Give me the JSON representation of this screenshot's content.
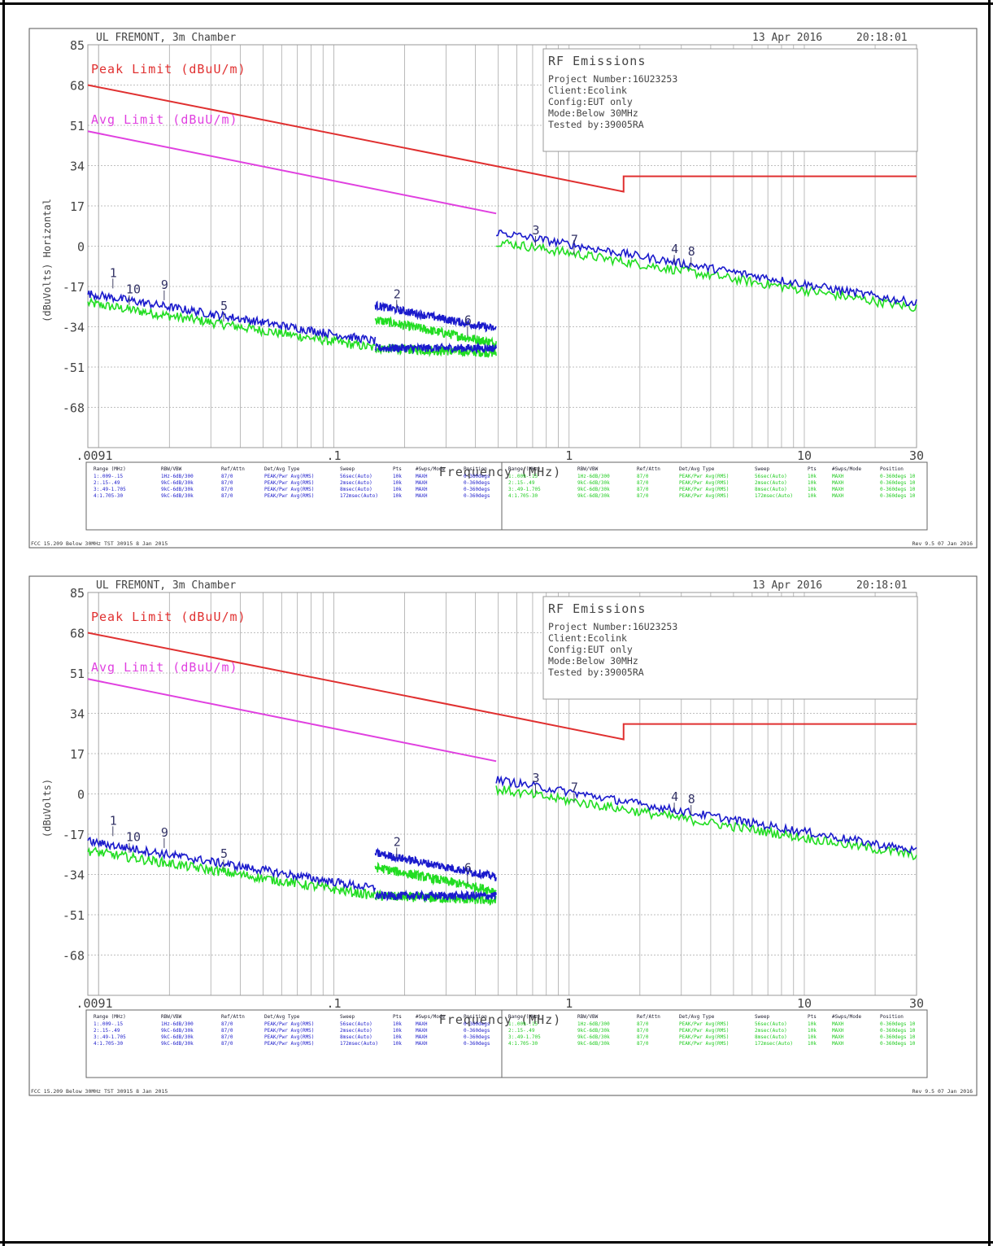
{
  "colors": {
    "peak_limit": "#e03030",
    "avg_limit": "#e040e0",
    "peak_trace": "#1a1acc",
    "avg_trace": "#22dd22",
    "grid": "#aaaaaa",
    "text": "#444444"
  },
  "chart_data": [
    {
      "type": "line",
      "header_left": "UL FREMONT, 3m Chamber",
      "header_date": "13 Apr 2016",
      "header_time": "20:18:01",
      "ylabel": "(dBuVolts) Horizontal",
      "xlabel": "Frequency (MHz)",
      "x_scale": "log",
      "xlim": [
        0.009,
        30
      ],
      "ylim": [
        -85,
        85
      ],
      "y_ticks": [
        "85",
        "68",
        "51",
        "34",
        "17",
        "0",
        "-17",
        "-34",
        "-51",
        "-68"
      ],
      "x_ticks": [
        {
          "value": 0.009,
          "label": ".0091"
        },
        {
          "value": 0.1,
          "label": ".1"
        },
        {
          "value": 1,
          "label": "1"
        },
        {
          "value": 10,
          "label": "10"
        },
        {
          "value": 30,
          "label": "30"
        }
      ],
      "info_box": {
        "title": "RF Emissions",
        "lines": [
          "Project Number:16U23253",
          "Client:Ecolink",
          "Config:EUT only",
          "Mode:Below 30MHz",
          "Tested by:39005RA"
        ]
      },
      "series": [
        {
          "name": "Peak Limit (dBuU/m)",
          "x": [
            0.009,
            0.49,
            1.705,
            1.705,
            30
          ],
          "y": [
            68,
            33.8,
            23,
            29.5,
            29.5
          ]
        },
        {
          "name": "Avg Limit (dBuU/m)",
          "x": [
            0.009,
            0.49
          ],
          "y": [
            48.5,
            13.8
          ]
        }
      ],
      "peak_segments": [
        {
          "x": [
            0.009,
            0.15
          ],
          "y": [
            -20,
            -40
          ]
        },
        {
          "x": [
            0.15,
            0.49
          ],
          "y": [
            -43,
            -43
          ]
        },
        {
          "x": [
            0.15,
            0.49
          ],
          "y": [
            -25,
            -35
          ]
        },
        {
          "x": [
            0.49,
            30
          ],
          "y": [
            6,
            -24
          ]
        }
      ],
      "avg_segments": [
        {
          "x": [
            0.009,
            0.15
          ],
          "y": [
            -24,
            -43
          ]
        },
        {
          "x": [
            0.15,
            0.49
          ],
          "y": [
            -43,
            -45
          ]
        },
        {
          "x": [
            0.15,
            0.49
          ],
          "y": [
            -31,
            -41
          ]
        },
        {
          "x": [
            0.49,
            30
          ],
          "y": [
            2,
            -26
          ]
        }
      ],
      "markers": [
        {
          "label": "1",
          "x": 0.0115,
          "y": -13
        },
        {
          "label": "10",
          "x": 0.0135,
          "y": -20
        },
        {
          "label": "9",
          "x": 0.019,
          "y": -18
        },
        {
          "label": "5",
          "x": 0.034,
          "y": -27
        },
        {
          "label": "2",
          "x": 0.185,
          "y": -22
        },
        {
          "label": "6",
          "x": 0.37,
          "y": -33
        },
        {
          "label": "3",
          "x": 0.72,
          "y": 5
        },
        {
          "label": "7",
          "x": 1.05,
          "y": 1
        },
        {
          "label": "4",
          "x": 2.8,
          "y": -3
        },
        {
          "label": "8",
          "x": 3.3,
          "y": -4
        }
      ],
      "settings_table": {
        "left_headers": [
          "Range (MHz)",
          "RBW/VBW",
          "Ref/Attn",
          "Det/Avg Type",
          "Sweep",
          "Pts",
          "#Swps/Mode",
          "Position"
        ],
        "left_rows": [
          [
            "1:.009-.15",
            "1Hz-6dB/300",
            "87/0",
            "PEAK/Pwr Avg(RMS)",
            "56sec(Auto)",
            "10k",
            "MAXH",
            "0-360degs"
          ],
          [
            "2:.15-.49",
            "9kC-6dB/30k",
            "87/0",
            "PEAK/Pwr Avg(RMS)",
            "2msec(Auto)",
            "10k",
            "MAXH",
            "0-360degs"
          ],
          [
            "3:.49-1.705",
            "9kC-6dB/30k",
            "87/0",
            "PEAK/Pwr Avg(RMS)",
            "8msec(Auto)",
            "10k",
            "MAXH",
            "0-360degs"
          ],
          [
            "4:1.705-30",
            "9kC-6dB/30k",
            "87/0",
            "PEAK/Pwr Avg(RMS)",
            "172msec(Auto)",
            "10k",
            "MAXH",
            "0-360degs"
          ]
        ],
        "right_headers": [
          "Range (MHz)",
          "RBW/VBW",
          "Ref/Attn",
          "Det/Avg Type",
          "Sweep",
          "Pts",
          "#Swps/Mode",
          "Position"
        ],
        "right_rows": [
          [
            "1:.009-.15",
            "1Hz-6dB/300",
            "87/0",
            "PEAK/Pwr Avg(RMS)",
            "56sec(Auto)",
            "10k",
            "MAXH",
            "0-360degs 10"
          ],
          [
            "2:.15-.49",
            "9kC-6dB/30k",
            "87/0",
            "PEAK/Pwr Avg(RMS)",
            "2msec(Auto)",
            "10k",
            "MAXH",
            "0-360degs 10"
          ],
          [
            "3:.49-1.705",
            "9kC-6dB/30k",
            "87/0",
            "PEAK/Pwr Avg(RMS)",
            "8msec(Auto)",
            "10k",
            "MAXH",
            "0-360degs 10"
          ],
          [
            "4:1.705-30",
            "9kC-6dB/30k",
            "87/0",
            "PEAK/Pwr Avg(RMS)",
            "172msec(Auto)",
            "10k",
            "MAXH",
            "0-360degs 10"
          ]
        ]
      },
      "footer_left": "FCC 15.209 Below 30MHz TST 30915  8 Jan 2015",
      "footer_right": "Rev 9.5 07 Jan 2016"
    },
    {
      "type": "line",
      "header_left": "UL FREMONT, 3m Chamber",
      "header_date": "13 Apr 2016",
      "header_time": "20:18:01",
      "ylabel": "(dBuVolts)",
      "xlabel": "Frequency (MHz)",
      "x_scale": "log",
      "xlim": [
        0.009,
        30
      ],
      "ylim": [
        -85,
        85
      ],
      "y_ticks": [
        "85",
        "68",
        "51",
        "34",
        "17",
        "0",
        "-17",
        "-34",
        "-51",
        "-68"
      ],
      "x_ticks": [
        {
          "value": 0.009,
          "label": ".0091"
        },
        {
          "value": 0.1,
          "label": ".1"
        },
        {
          "value": 1,
          "label": "1"
        },
        {
          "value": 10,
          "label": "10"
        },
        {
          "value": 30,
          "label": "30"
        }
      ],
      "info_box": {
        "title": "RF Emissions",
        "lines": [
          "Project Number:16U23253",
          "Client:Ecolink",
          "Config:EUT only",
          "Mode:Below 30MHz",
          "Tested by:39005RA"
        ]
      },
      "series": [
        {
          "name": "Peak Limit (dBuU/m)",
          "x": [
            0.009,
            0.49,
            1.705,
            1.705,
            30
          ],
          "y": [
            68,
            33.8,
            23,
            29.5,
            29.5
          ]
        },
        {
          "name": "Avg Limit (dBuU/m)",
          "x": [
            0.009,
            0.49
          ],
          "y": [
            48.5,
            13.8
          ]
        }
      ],
      "peak_segments": [
        {
          "x": [
            0.009,
            0.15
          ],
          "y": [
            -20,
            -40
          ]
        },
        {
          "x": [
            0.15,
            0.49
          ],
          "y": [
            -43,
            -43
          ]
        },
        {
          "x": [
            0.15,
            0.49
          ],
          "y": [
            -25,
            -35
          ]
        },
        {
          "x": [
            0.49,
            30
          ],
          "y": [
            6,
            -24
          ]
        }
      ],
      "avg_segments": [
        {
          "x": [
            0.009,
            0.15
          ],
          "y": [
            -24,
            -43
          ]
        },
        {
          "x": [
            0.15,
            0.49
          ],
          "y": [
            -43,
            -45
          ]
        },
        {
          "x": [
            0.15,
            0.49
          ],
          "y": [
            -31,
            -41
          ]
        },
        {
          "x": [
            0.49,
            30
          ],
          "y": [
            2,
            -26
          ]
        }
      ],
      "markers": [
        {
          "label": "1",
          "x": 0.0115,
          "y": -13
        },
        {
          "label": "10",
          "x": 0.0135,
          "y": -20
        },
        {
          "label": "9",
          "x": 0.019,
          "y": -18
        },
        {
          "label": "5",
          "x": 0.034,
          "y": -27
        },
        {
          "label": "2",
          "x": 0.185,
          "y": -22
        },
        {
          "label": "6",
          "x": 0.37,
          "y": -33
        },
        {
          "label": "3",
          "x": 0.72,
          "y": 5
        },
        {
          "label": "7",
          "x": 1.05,
          "y": 1
        },
        {
          "label": "4",
          "x": 2.8,
          "y": -3
        },
        {
          "label": "8",
          "x": 3.3,
          "y": -4
        }
      ],
      "settings_table": {
        "left_headers": [
          "Range (MHz)",
          "RBW/VBW",
          "Ref/Attn",
          "Det/Avg Type",
          "Sweep",
          "Pts",
          "#Swps/Mode",
          "Position"
        ],
        "left_rows": [
          [
            "1:.009-.15",
            "1Hz-6dB/300",
            "87/0",
            "PEAK/Pwr Avg(RMS)",
            "56sec(Auto)",
            "10k",
            "MAXH",
            "0-360degs"
          ],
          [
            "2:.15-.49",
            "9kC-6dB/30k",
            "87/0",
            "PEAK/Pwr Avg(RMS)",
            "2msec(Auto)",
            "10k",
            "MAXH",
            "0-360degs"
          ],
          [
            "3:.49-1.705",
            "9kC-6dB/30k",
            "87/0",
            "PEAK/Pwr Avg(RMS)",
            "8msec(Auto)",
            "10k",
            "MAXH",
            "0-360degs"
          ],
          [
            "4:1.705-30",
            "9kC-6dB/30k",
            "87/0",
            "PEAK/Pwr Avg(RMS)",
            "172msec(Auto)",
            "10k",
            "MAXH",
            "0-360degs"
          ]
        ],
        "right_headers": [
          "Range (MHz)",
          "RBW/VBW",
          "Ref/Attn",
          "Det/Avg Type",
          "Sweep",
          "Pts",
          "#Swps/Mode",
          "Position"
        ],
        "right_rows": [
          [
            "1:.009-.15",
            "1Hz-6dB/300",
            "87/0",
            "PEAK/Pwr Avg(RMS)",
            "56sec(Auto)",
            "10k",
            "MAXH",
            "0-360degs 10"
          ],
          [
            "2:.15-.49",
            "9kC-6dB/30k",
            "87/0",
            "PEAK/Pwr Avg(RMS)",
            "2msec(Auto)",
            "10k",
            "MAXH",
            "0-360degs 10"
          ],
          [
            "3:.49-1.705",
            "9kC-6dB/30k",
            "87/0",
            "PEAK/Pwr Avg(RMS)",
            "8msec(Auto)",
            "10k",
            "MAXH",
            "0-360degs 10"
          ],
          [
            "4:1.705-30",
            "9kC-6dB/30k",
            "87/0",
            "PEAK/Pwr Avg(RMS)",
            "172msec(Auto)",
            "10k",
            "MAXH",
            "0-360degs 10"
          ]
        ]
      },
      "footer_left": "FCC 15.209 Below 30MHz TST 30915  8 Jan 2015",
      "footer_right": "Rev 9.5 07 Jan 2016"
    }
  ]
}
